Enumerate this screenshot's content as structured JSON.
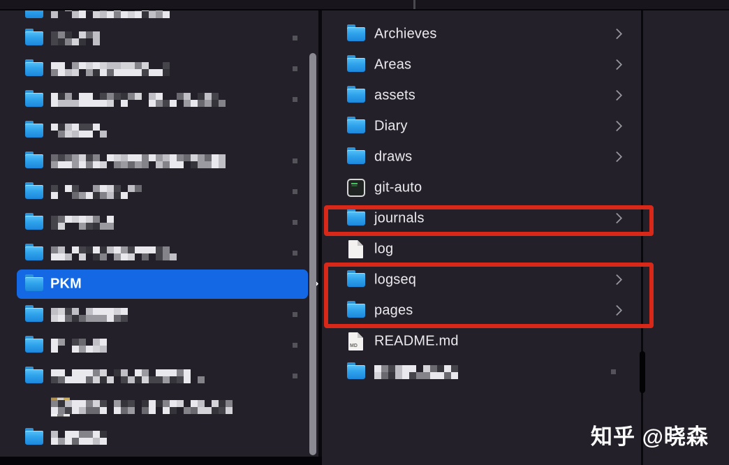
{
  "watermark": {
    "text": "知乎 @晓森"
  },
  "icons": {
    "md_badge": "MD"
  },
  "annotations": {
    "color": "#d8281a",
    "boxes": [
      {
        "label": "highlight-journals",
        "targets": [
          "journals"
        ]
      },
      {
        "label": "highlight-logseq-pages",
        "targets": [
          "logseq",
          "pages"
        ]
      }
    ]
  },
  "colors": {
    "background": "#232029",
    "selection_blue": "#1568e3",
    "annotation_red": "#d8281a",
    "text": "#ebeaee",
    "folder_blue": "#2fa3ec"
  },
  "left_column": {
    "description": "parent folder list, names pixelated",
    "items": [
      {
        "icon": "folder",
        "blurred": true,
        "blur_width": 165,
        "marker": false,
        "partial": true
      },
      {
        "icon": "folder",
        "blurred": true,
        "blur_width": 70,
        "marker": true
      },
      {
        "icon": "folder",
        "blurred": true,
        "blur_width": 167,
        "marker": true
      },
      {
        "icon": "folder",
        "blurred": true,
        "blur_width": 250,
        "marker": true
      },
      {
        "icon": "folder",
        "blurred": true,
        "blur_width": 77,
        "marker": false
      },
      {
        "icon": "folder",
        "blurred": true,
        "blur_width": 253,
        "marker": true
      },
      {
        "icon": "folder",
        "blurred": true,
        "blur_width": 132,
        "marker": true
      },
      {
        "icon": "folder",
        "blurred": true,
        "blur_width": 87,
        "marker": true
      },
      {
        "icon": "folder",
        "blurred": true,
        "blur_width": 182,
        "marker": true
      },
      {
        "icon": "folder",
        "label": "PKM",
        "selected": true,
        "chevron": true
      },
      {
        "icon": "folder",
        "blurred": true,
        "blur_width": 107,
        "marker": true
      },
      {
        "icon": "folder",
        "blurred": true,
        "blur_width": 79,
        "marker": true
      },
      {
        "icon": "folder",
        "blurred": true,
        "blur_width": 217,
        "marker": true
      },
      {
        "icon": "app",
        "blurred": true,
        "blur_width": 262,
        "marker": false
      },
      {
        "icon": "folder",
        "blurred": true,
        "blur_width": 77,
        "marker": false
      }
    ]
  },
  "right_column": {
    "description": "contents of PKM folder",
    "items": [
      {
        "icon": "folder",
        "label": "Archieves",
        "chevron": true
      },
      {
        "icon": "folder",
        "label": "Areas",
        "chevron": true
      },
      {
        "icon": "folder",
        "label": "assets",
        "chevron": true
      },
      {
        "icon": "folder",
        "label": "Diary",
        "chevron": true
      },
      {
        "icon": "folder",
        "label": "draws",
        "chevron": true
      },
      {
        "icon": "terminal",
        "label": "git-auto",
        "chevron": false
      },
      {
        "icon": "folder",
        "label": "journals",
        "chevron": true,
        "boxed": true
      },
      {
        "icon": "doc",
        "label": "log",
        "chevron": false
      },
      {
        "icon": "folder",
        "label": "logseq",
        "chevron": true,
        "boxed": true
      },
      {
        "icon": "folder",
        "label": "pages",
        "chevron": true,
        "boxed": true
      },
      {
        "icon": "md",
        "label": "README.md",
        "chevron": false
      },
      {
        "icon": "folder",
        "blurred": true,
        "blur_width": 124,
        "marker": true
      }
    ]
  }
}
